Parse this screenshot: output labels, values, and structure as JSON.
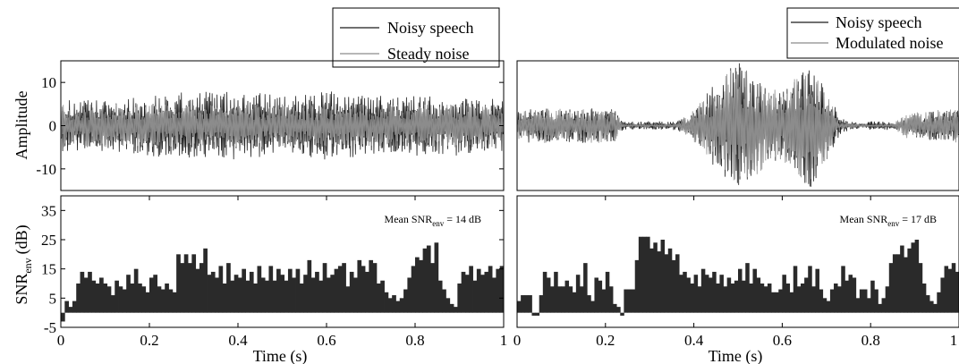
{
  "colors": {
    "noisy_speech": "#1a1a1a",
    "noise": "#8c8c8c",
    "bar": "#2a2a2a"
  },
  "figure": {
    "y_label_top": "Amplitude",
    "y_label_bottom_main": "SNR",
    "y_label_bottom_sub": "env",
    "y_label_bottom_unit": "(dB)",
    "x_label": "Time (s)"
  },
  "chart_data": [
    {
      "type": "line",
      "panel": "left-top",
      "xlim": [
        0,
        1
      ],
      "ylim": [
        -15,
        15
      ],
      "x_ticks": [],
      "y_ticks": [
        -10,
        0,
        10
      ],
      "legend_position": "above-right",
      "series": [
        {
          "name": "Noisy speech",
          "color": "noisy_speech",
          "envelope": [
            [
              0,
              6
            ],
            [
              0.1,
              6
            ],
            [
              0.2,
              7
            ],
            [
              0.3,
              8
            ],
            [
              0.4,
              8
            ],
            [
              0.5,
              7
            ],
            [
              0.6,
              8
            ],
            [
              0.7,
              7
            ],
            [
              0.8,
              7
            ],
            [
              0.9,
              7
            ],
            [
              1,
              6
            ]
          ]
        },
        {
          "name": "Steady noise",
          "color": "noise",
          "envelope": [
            [
              0,
              5
            ],
            [
              0.5,
              5
            ],
            [
              1,
              5
            ]
          ]
        }
      ]
    },
    {
      "type": "line",
      "panel": "right-top",
      "xlim": [
        0,
        1
      ],
      "ylim": [
        -15,
        15
      ],
      "x_ticks": [],
      "y_ticks": [],
      "legend_position": "above-right",
      "series": [
        {
          "name": "Noisy speech",
          "color": "noisy_speech",
          "envelope": [
            [
              0,
              4
            ],
            [
              0.22,
              4
            ],
            [
              0.24,
              1
            ],
            [
              0.36,
              1
            ],
            [
              0.4,
              3
            ],
            [
              0.44,
              9
            ],
            [
              0.5,
              15
            ],
            [
              0.56,
              9
            ],
            [
              0.6,
              8
            ],
            [
              0.66,
              15
            ],
            [
              0.7,
              9
            ],
            [
              0.73,
              2
            ],
            [
              0.76,
              1
            ],
            [
              0.78,
              0.5
            ],
            [
              0.8,
              1
            ],
            [
              0.85,
              1
            ],
            [
              0.87,
              1
            ],
            [
              0.9,
              3
            ],
            [
              1,
              4
            ]
          ]
        },
        {
          "name": "Modulated noise",
          "color": "noise",
          "envelope": [
            [
              0,
              4
            ],
            [
              0.22,
              4
            ],
            [
              0.24,
              0.3
            ],
            [
              0.36,
              0.3
            ],
            [
              0.4,
              4
            ],
            [
              0.44,
              8
            ],
            [
              0.5,
              15
            ],
            [
              0.56,
              10
            ],
            [
              0.6,
              8
            ],
            [
              0.66,
              14
            ],
            [
              0.7,
              8
            ],
            [
              0.73,
              1
            ],
            [
              0.78,
              0.3
            ],
            [
              0.85,
              0.3
            ],
            [
              0.88,
              3
            ],
            [
              1,
              4
            ]
          ]
        }
      ]
    },
    {
      "type": "bar",
      "panel": "left-bottom",
      "xlim": [
        0,
        1
      ],
      "ylim": [
        -5,
        40
      ],
      "x_ticks": [
        0,
        0.2,
        0.4,
        0.6,
        0.8,
        1
      ],
      "x_tick_labels": [
        "0",
        "0.2",
        "0.4",
        "0.6",
        "0.8",
        "1"
      ],
      "y_ticks": [
        -5,
        5,
        15,
        25,
        35
      ],
      "annotation": {
        "prefix": "Mean SNR",
        "sub": "env",
        "suffix": " = 14 dB"
      },
      "series": [
        {
          "values": [
            -3,
            4,
            2,
            4,
            10,
            14,
            12,
            14,
            11,
            10,
            12,
            10,
            9,
            6,
            11,
            9,
            8,
            13,
            10,
            15,
            10,
            9,
            7,
            12,
            13,
            9,
            8,
            10,
            8,
            7,
            20,
            17,
            20,
            17,
            20,
            15,
            17,
            22,
            13,
            14,
            12,
            16,
            10,
            17,
            11,
            13,
            12,
            15,
            11,
            14,
            10,
            16,
            12,
            11,
            16,
            11,
            15,
            13,
            11,
            15,
            12,
            15,
            10,
            13,
            18,
            12,
            14,
            11,
            17,
            12,
            13,
            15,
            16,
            17,
            9,
            14,
            12,
            18,
            16,
            14,
            18,
            17,
            10,
            11,
            7,
            5,
            6,
            4,
            5,
            8,
            12,
            16,
            19,
            18,
            22,
            23,
            17,
            24,
            11,
            8,
            5,
            3,
            2,
            10,
            14,
            13,
            16,
            11,
            15,
            13,
            14,
            16,
            12,
            15,
            16
          ]
        }
      ]
    },
    {
      "type": "bar",
      "panel": "right-bottom",
      "xlim": [
        0,
        1
      ],
      "ylim": [
        -5,
        40
      ],
      "x_ticks": [
        0,
        0.2,
        0.4,
        0.6,
        0.8,
        1
      ],
      "x_tick_labels": [
        "0",
        "0.2",
        "0.4",
        "0.6",
        "0.8",
        "1"
      ],
      "y_ticks": [],
      "annotation": {
        "prefix": "Mean SNR",
        "sub": "env",
        "suffix": " = 17 dB"
      },
      "series": [
        {
          "values": [
            4,
            6,
            6,
            6,
            -1,
            -1,
            6,
            14,
            12,
            9,
            14,
            9,
            9,
            11,
            9,
            7,
            13,
            9,
            17,
            6,
            4,
            12,
            11,
            8,
            14,
            9,
            3,
            2,
            -1,
            8,
            8,
            8,
            18,
            26,
            26,
            26,
            22,
            24,
            21,
            25,
            20,
            22,
            18,
            20,
            13,
            14,
            12,
            10,
            13,
            9,
            15,
            13,
            12,
            14,
            10,
            13,
            9,
            12,
            10,
            11,
            15,
            11,
            17,
            10,
            15,
            12,
            10,
            9,
            10,
            7,
            7,
            8,
            13,
            10,
            7,
            16,
            9,
            10,
            12,
            16,
            9,
            15,
            8,
            5,
            4,
            8,
            10,
            9,
            16,
            11,
            13,
            12,
            5,
            8,
            8,
            5,
            11,
            8,
            3,
            5,
            9,
            17,
            20,
            20,
            23,
            19,
            22,
            24,
            25,
            17,
            10,
            6,
            4,
            3,
            7,
            12,
            16,
            15,
            17,
            14
          ]
        }
      ]
    }
  ],
  "legends": [
    {
      "items": [
        {
          "label": "Noisy speech",
          "color": "noisy_speech"
        },
        {
          "label": "Steady noise",
          "color": "noise"
        }
      ]
    },
    {
      "items": [
        {
          "label": "Noisy speech",
          "color": "noisy_speech"
        },
        {
          "label": "Modulated noise",
          "color": "noise"
        }
      ]
    }
  ]
}
